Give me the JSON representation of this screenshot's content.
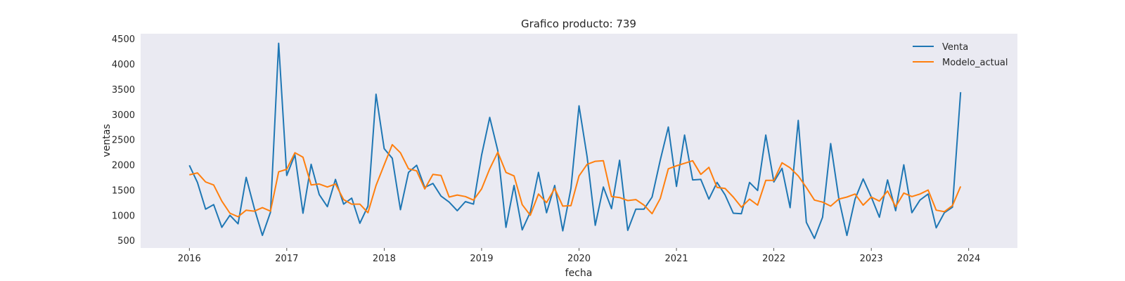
{
  "chart_data": {
    "type": "line",
    "title": "Grafico producto: 739",
    "xlabel": "fecha",
    "ylabel": "ventas",
    "x_start": "2016-01",
    "x_step": "month",
    "xticks": [
      "2016",
      "2017",
      "2018",
      "2019",
      "2020",
      "2021",
      "2022",
      "2023",
      "2024"
    ],
    "yticks": [
      500,
      1000,
      1500,
      2000,
      2500,
      3000,
      3500,
      4000,
      4500
    ],
    "xlim": [
      "2015-07",
      "2024-07"
    ],
    "ylim": [
      350,
      4600
    ],
    "grid": false,
    "background": "#eaeaf2",
    "legend_position": "top-right",
    "series": [
      {
        "name": "Venta",
        "color": "#1f77b4",
        "values": [
          1990,
          1650,
          1120,
          1210,
          760,
          1000,
          830,
          1750,
          1140,
          600,
          1060,
          4410,
          1790,
          2200,
          1040,
          2010,
          1410,
          1170,
          1710,
          1220,
          1340,
          840,
          1180,
          3400,
          2320,
          2130,
          1110,
          1850,
          1990,
          1550,
          1630,
          1380,
          1260,
          1090,
          1270,
          1220,
          2190,
          2940,
          2280,
          760,
          1590,
          710,
          1060,
          1850,
          1050,
          1590,
          690,
          1530,
          3170,
          2160,
          800,
          1560,
          1130,
          2090,
          700,
          1120,
          1120,
          1360,
          2090,
          2750,
          1570,
          2590,
          1700,
          1710,
          1320,
          1650,
          1400,
          1040,
          1030,
          1650,
          1490,
          2590,
          1660,
          1930,
          1150,
          2880,
          860,
          540,
          960,
          2420,
          1330,
          600,
          1320,
          1720,
          1360,
          960,
          1700,
          1090,
          2000,
          1050,
          1300,
          1420,
          750,
          1050,
          1160,
          3440
        ]
      },
      {
        "name": "Modelo_actual",
        "color": "#ff7f0e",
        "values": [
          1800,
          1840,
          1660,
          1600,
          1280,
          1040,
          970,
          1100,
          1080,
          1150,
          1080,
          1860,
          1910,
          2240,
          2150,
          1600,
          1620,
          1560,
          1620,
          1310,
          1220,
          1220,
          1050,
          1590,
          2000,
          2400,
          2240,
          1920,
          1880,
          1520,
          1810,
          1790,
          1360,
          1400,
          1370,
          1300,
          1520,
          1920,
          2250,
          1850,
          1780,
          1210,
          1000,
          1420,
          1250,
          1530,
          1180,
          1190,
          1780,
          2010,
          2070,
          2080,
          1370,
          1350,
          1290,
          1310,
          1200,
          1030,
          1330,
          1920,
          1980,
          2030,
          2080,
          1810,
          1950,
          1550,
          1530,
          1360,
          1160,
          1320,
          1200,
          1690,
          1690,
          2040,
          1940,
          1780,
          1550,
          1300,
          1260,
          1180,
          1320,
          1360,
          1420,
          1200,
          1360,
          1280,
          1480,
          1170,
          1440,
          1370,
          1420,
          1500,
          1100,
          1070,
          1190,
          1570
        ]
      }
    ]
  }
}
